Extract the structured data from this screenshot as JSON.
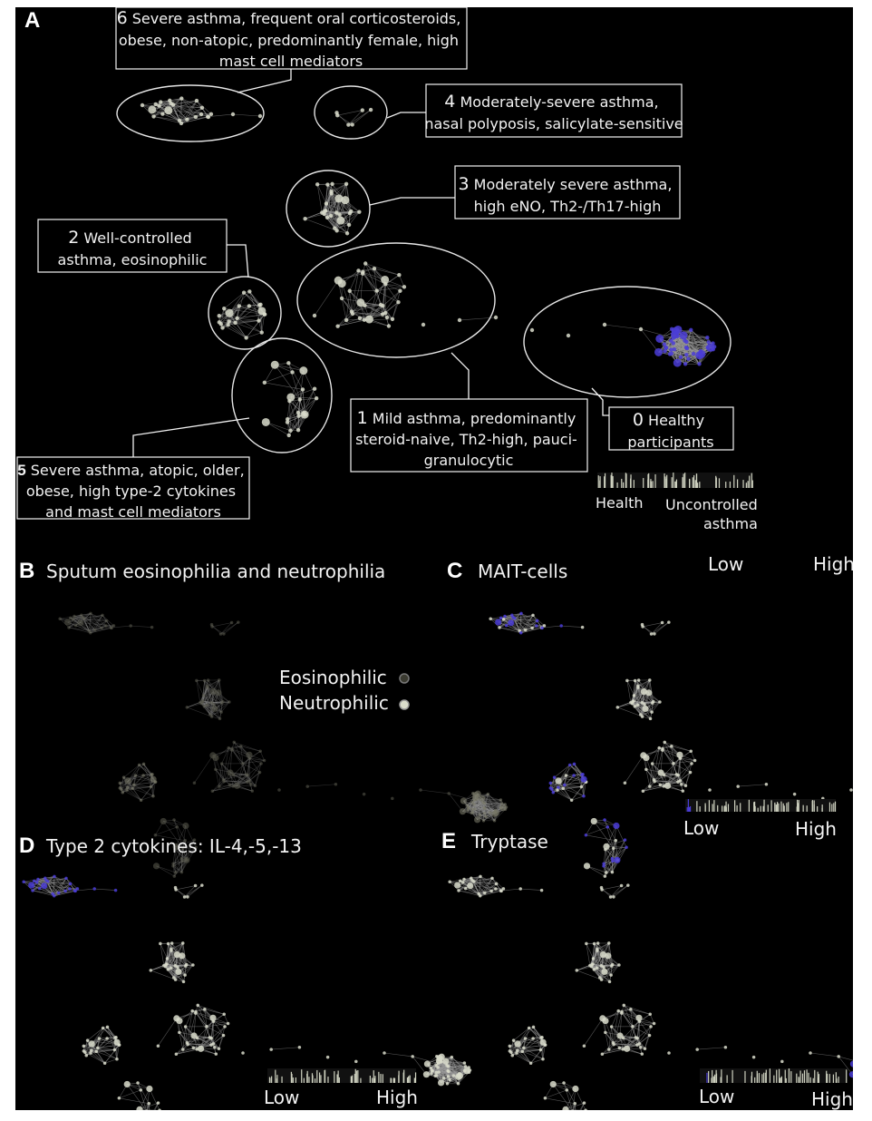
{
  "panels": {
    "A": {
      "letter": "A",
      "clusters": [
        {
          "num": "6",
          "lines": [
            "Severe asthma, frequent oral corticosteroids,",
            "obese, non-atopic, predominantly female, high",
            "mast cell mediators"
          ]
        },
        {
          "num": "4",
          "lines": [
            "Moderately-severe asthma,",
            "nasal polyposis, salicylate-sensitive"
          ]
        },
        {
          "num": "3",
          "lines": [
            "Moderately severe asthma,",
            "high eNO, Th2-/Th17-high"
          ]
        },
        {
          "num": "2",
          "lines": [
            "Well-controlled",
            "asthma, eosinophilic"
          ]
        },
        {
          "num": "1",
          "lines": [
            "Mild asthma, predominantly",
            "steroid-naive, Th2-high, pauci-",
            "granulocytic"
          ]
        },
        {
          "num": "0",
          "lines": [
            "Healthy",
            "participants"
          ]
        },
        {
          "num": "5",
          "lines": [
            "Severe asthma, atopic, older,",
            "obese, high type-2 cytokines",
            "and mast cell mediators"
          ]
        }
      ],
      "scale_left": "Health",
      "scale_right_1": "Uncontrolled",
      "scale_right_2": "asthma"
    },
    "B": {
      "letter": "B",
      "title": "Sputum eosinophilia and neutrophilia",
      "legend_eos": "Eosinophilic",
      "legend_neu": "Neutrophilic"
    },
    "C": {
      "letter": "C",
      "title": "MAIT-cells",
      "top_low": "Low",
      "top_high": "High",
      "low": "Low",
      "high": "High"
    },
    "D": {
      "letter": "D",
      "title": "Type 2 cytokines: IL-4,-5,-13",
      "low": "Low",
      "high": "High"
    },
    "E": {
      "letter": "E",
      "title": "Tryptase",
      "low": "Low",
      "high": "High"
    }
  },
  "colors": {
    "background": "#000000",
    "node": "#d9dccb",
    "edge": "#9a9a9a",
    "highlight": "#4a3cd6"
  }
}
